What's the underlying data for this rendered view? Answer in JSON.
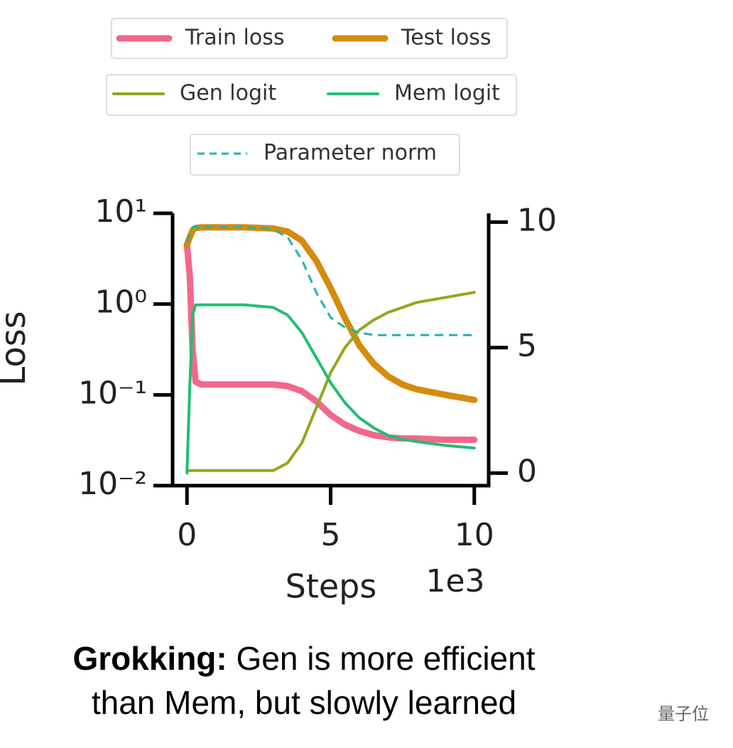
{
  "chart_data": {
    "type": "line",
    "y_label": "Loss",
    "x_label": "Steps",
    "x_offset_label": "1e3",
    "x": [
      0,
      0.1,
      0.2,
      0.3,
      0.5,
      1,
      2,
      3,
      3.5,
      4,
      4.5,
      5,
      5.5,
      6,
      6.5,
      7,
      7.5,
      8,
      9,
      10
    ],
    "xlim": [
      -0.5,
      10.5
    ],
    "xticks": [
      0,
      5,
      10
    ],
    "yscale": "log",
    "ylim": [
      0.01,
      10
    ],
    "yticks": [
      {
        "value": 10,
        "label": "10¹"
      },
      {
        "value": 1,
        "label": "10⁰"
      },
      {
        "value": 0.1,
        "label": "10⁻¹"
      },
      {
        "value": 0.01,
        "label": "10⁻²"
      }
    ],
    "y2lim": [
      -0.5,
      10.35
    ],
    "y2ticks": [
      0,
      5,
      10
    ],
    "series": [
      {
        "name": "Train loss",
        "color": "#f2688a",
        "values": [
          4.5,
          2,
          0.3,
          0.14,
          0.13,
          0.13,
          0.13,
          0.13,
          0.125,
          0.11,
          0.085,
          0.06,
          0.047,
          0.04,
          0.036,
          0.034,
          0.033,
          0.033,
          0.032,
          0.032
        ]
      },
      {
        "name": "Test loss",
        "color": "#d48c0c",
        "values": [
          4.5,
          5.5,
          6.5,
          6.9,
          7,
          7,
          7,
          6.8,
          6.3,
          5,
          3,
          1.5,
          0.7,
          0.35,
          0.22,
          0.16,
          0.13,
          0.115,
          0.1,
          0.088
        ]
      },
      {
        "name": "Gen logit",
        "color": "#94a61c",
        "axis": "y2",
        "values": [
          0.1,
          0.1,
          0.1,
          0.1,
          0.1,
          0.1,
          0.1,
          0.1,
          0.4,
          1.2,
          2.6,
          4.0,
          5.0,
          5.7,
          6.1,
          6.4,
          6.6,
          6.8,
          7.0,
          7.2
        ]
      },
      {
        "name": "Mem logit",
        "color": "#1fbf74",
        "axis": "y2",
        "values": [
          0.0,
          3.5,
          6.3,
          6.7,
          6.7,
          6.7,
          6.7,
          6.6,
          6.3,
          5.6,
          4.6,
          3.6,
          2.8,
          2.2,
          1.8,
          1.5,
          1.35,
          1.25,
          1.1,
          1.0
        ]
      },
      {
        "name": "Parameter norm",
        "color": "#1fb3b3",
        "axis": "y2",
        "linestyle": "dashed",
        "values": [
          9.2,
          9.5,
          9.8,
          9.8,
          9.8,
          9.8,
          9.8,
          9.7,
          9.4,
          8.5,
          7.2,
          6.2,
          5.8,
          5.6,
          5.5,
          5.5,
          5.5,
          5.5,
          5.5,
          5.5
        ]
      }
    ]
  },
  "caption": {
    "bold": "Grokking:",
    "lines": [
      "Gen is more efficient",
      "than Mem, but slowly learned"
    ]
  },
  "watermark": "量子位"
}
